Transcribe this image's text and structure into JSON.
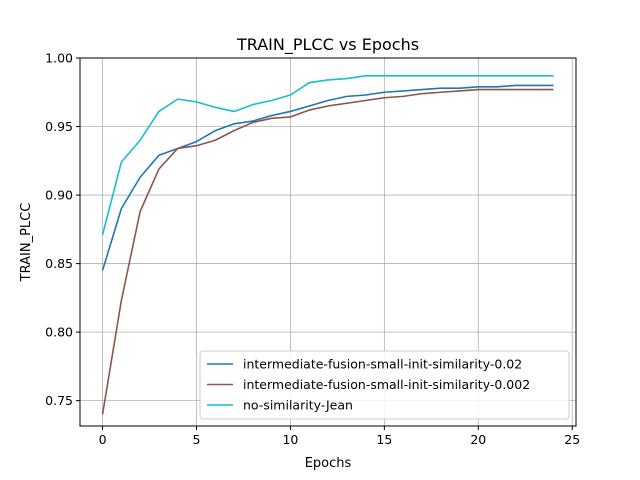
{
  "chart_data": {
    "type": "line",
    "title": "TRAIN_PLCC vs Epochs",
    "xlabel": "Epochs",
    "ylabel": "TRAIN_PLCC",
    "xlim": [
      -1.2,
      25.2
    ],
    "ylim": [
      0.7315,
      1.0
    ],
    "xticks": [
      0,
      5,
      10,
      15,
      20,
      25
    ],
    "yticks": [
      0.75,
      0.8,
      0.85,
      0.9,
      0.95,
      1.0
    ],
    "xtick_labels": [
      "0",
      "5",
      "10",
      "15",
      "20",
      "25"
    ],
    "ytick_labels": [
      "0.75",
      "0.80",
      "0.85",
      "0.90",
      "0.95",
      "1.00"
    ],
    "grid": true,
    "legend_position": "lower-right",
    "x": [
      0,
      1,
      2,
      3,
      4,
      5,
      6,
      7,
      8,
      9,
      10,
      11,
      12,
      13,
      14,
      15,
      16,
      17,
      18,
      19,
      20,
      21,
      22,
      23,
      24
    ],
    "series": [
      {
        "name": "intermediate-fusion-small-init-similarity-0.02",
        "color": "#1f77b4",
        "values": [
          0.845,
          0.89,
          0.913,
          0.929,
          0.934,
          0.939,
          0.947,
          0.952,
          0.954,
          0.958,
          0.961,
          0.965,
          0.969,
          0.972,
          0.973,
          0.975,
          0.976,
          0.977,
          0.978,
          0.978,
          0.979,
          0.979,
          0.98,
          0.98,
          0.98
        ]
      },
      {
        "name": "intermediate-fusion-small-init-similarity-0.002",
        "color": "#8c564b",
        "values": [
          0.74,
          0.823,
          0.888,
          0.919,
          0.934,
          0.936,
          0.94,
          0.947,
          0.953,
          0.956,
          0.957,
          0.962,
          0.965,
          0.967,
          0.969,
          0.971,
          0.972,
          0.974,
          0.975,
          0.976,
          0.977,
          0.977,
          0.977,
          0.977,
          0.977
        ]
      },
      {
        "name": "no-similarity-Jean",
        "color": "#17becf",
        "values": [
          0.871,
          0.924,
          0.94,
          0.961,
          0.97,
          0.968,
          0.964,
          0.961,
          0.966,
          0.969,
          0.973,
          0.982,
          0.984,
          0.985,
          0.987,
          0.987,
          0.987,
          0.987,
          0.987,
          0.987,
          0.987,
          0.987,
          0.987,
          0.987,
          0.987
        ]
      }
    ]
  }
}
